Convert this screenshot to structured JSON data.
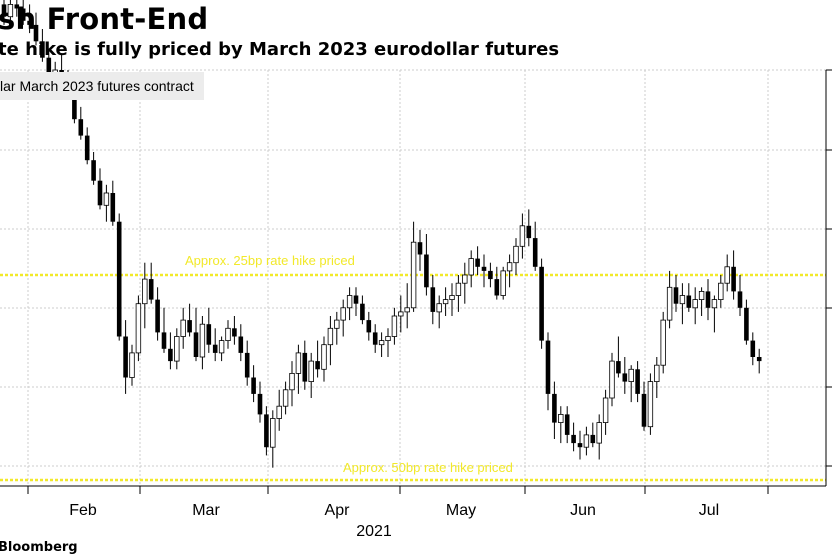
{
  "header": {
    "title": "sh Front-End",
    "subtitle": "te hike is fully priced by March 2023 eurodollar futures"
  },
  "legend": {
    "label": "lar March 2023 futures contract"
  },
  "footer": {
    "source": "Bloomberg"
  },
  "colors": {
    "candle": "#000000",
    "threshold_line": "#f2e92a",
    "grid": "#cccccc",
    "legend_bg": "#ececec"
  },
  "chart_data": {
    "type": "candlestick",
    "x_month_labels": [
      "Feb",
      "Mar",
      "Apr",
      "May",
      "Jun",
      "Jul"
    ],
    "x_year_label": "2021",
    "grid": true,
    "annotations": [
      {
        "text": "Approx. 25bp rate hike priced",
        "level": 0.5
      },
      {
        "text": "Approx. 50bp rate hike priced",
        "level": 0.0
      }
    ],
    "series": [
      {
        "values": [
          [
            1.16,
            1.18,
            1.11,
            1.13
          ],
          [
            1.13,
            1.18,
            1.11,
            1.16
          ],
          [
            1.16,
            1.19,
            1.13,
            1.15
          ],
          [
            1.15,
            1.18,
            1.11,
            1.12
          ],
          [
            1.12,
            1.16,
            1.09,
            1.11
          ],
          [
            1.11,
            1.14,
            1.06,
            1.07
          ],
          [
            1.07,
            1.1,
            1.02,
            1.03
          ],
          [
            1.03,
            1.05,
            0.98,
            0.99
          ],
          [
            0.99,
            1.02,
            0.95,
            1.0
          ],
          [
            1.0,
            1.04,
            0.96,
            0.97
          ],
          [
            0.97,
            1.0,
            0.94,
            0.95
          ],
          [
            0.95,
            0.97,
            0.87,
            0.88
          ],
          [
            0.88,
            0.91,
            0.83,
            0.84
          ],
          [
            0.84,
            0.86,
            0.77,
            0.78
          ],
          [
            0.78,
            0.8,
            0.72,
            0.73
          ],
          [
            0.73,
            0.76,
            0.66,
            0.67
          ],
          [
            0.67,
            0.72,
            0.63,
            0.7
          ],
          [
            0.7,
            0.73,
            0.62,
            0.63
          ],
          [
            0.63,
            0.65,
            0.34,
            0.35
          ],
          [
            0.35,
            0.39,
            0.21,
            0.25
          ],
          [
            0.25,
            0.33,
            0.23,
            0.31
          ],
          [
            0.31,
            0.45,
            0.29,
            0.43
          ],
          [
            0.43,
            0.53,
            0.37,
            0.49
          ],
          [
            0.49,
            0.53,
            0.43,
            0.44
          ],
          [
            0.44,
            0.47,
            0.34,
            0.36
          ],
          [
            0.36,
            0.42,
            0.31,
            0.32
          ],
          [
            0.32,
            0.36,
            0.27,
            0.29
          ],
          [
            0.29,
            0.37,
            0.27,
            0.35
          ],
          [
            0.35,
            0.42,
            0.32,
            0.39
          ],
          [
            0.39,
            0.43,
            0.35,
            0.36
          ],
          [
            0.36,
            0.42,
            0.29,
            0.3
          ],
          [
            0.3,
            0.4,
            0.27,
            0.38
          ],
          [
            0.38,
            0.42,
            0.31,
            0.33
          ],
          [
            0.33,
            0.37,
            0.29,
            0.31
          ],
          [
            0.31,
            0.35,
            0.29,
            0.34
          ],
          [
            0.34,
            0.39,
            0.32,
            0.37
          ],
          [
            0.37,
            0.4,
            0.33,
            0.35
          ],
          [
            0.35,
            0.38,
            0.29,
            0.31
          ],
          [
            0.31,
            0.34,
            0.23,
            0.25
          ],
          [
            0.25,
            0.28,
            0.19,
            0.21
          ],
          [
            0.21,
            0.24,
            0.14,
            0.16
          ],
          [
            0.16,
            0.18,
            0.06,
            0.08
          ],
          [
            0.08,
            0.17,
            0.03,
            0.15
          ],
          [
            0.15,
            0.22,
            0.12,
            0.18
          ],
          [
            0.18,
            0.24,
            0.16,
            0.22
          ],
          [
            0.22,
            0.29,
            0.18,
            0.26
          ],
          [
            0.26,
            0.33,
            0.21,
            0.31
          ],
          [
            0.31,
            0.34,
            0.22,
            0.24
          ],
          [
            0.24,
            0.31,
            0.2,
            0.29
          ],
          [
            0.29,
            0.34,
            0.25,
            0.27
          ],
          [
            0.27,
            0.35,
            0.24,
            0.33
          ],
          [
            0.33,
            0.4,
            0.28,
            0.37
          ],
          [
            0.37,
            0.41,
            0.33,
            0.39
          ],
          [
            0.39,
            0.44,
            0.35,
            0.42
          ],
          [
            0.42,
            0.47,
            0.39,
            0.45
          ],
          [
            0.45,
            0.47,
            0.4,
            0.43
          ],
          [
            0.43,
            0.45,
            0.38,
            0.39
          ],
          [
            0.39,
            0.41,
            0.34,
            0.36
          ],
          [
            0.36,
            0.38,
            0.31,
            0.33
          ],
          [
            0.33,
            0.36,
            0.3,
            0.34
          ],
          [
            0.34,
            0.37,
            0.3,
            0.35
          ],
          [
            0.35,
            0.42,
            0.33,
            0.4
          ],
          [
            0.4,
            0.45,
            0.36,
            0.41
          ],
          [
            0.41,
            0.48,
            0.37,
            0.42
          ],
          [
            0.42,
            0.63,
            0.41,
            0.58
          ],
          [
            0.58,
            0.61,
            0.51,
            0.55
          ],
          [
            0.55,
            0.6,
            0.45,
            0.47
          ],
          [
            0.47,
            0.5,
            0.38,
            0.41
          ],
          [
            0.41,
            0.45,
            0.37,
            0.43
          ],
          [
            0.43,
            0.47,
            0.4,
            0.44
          ],
          [
            0.44,
            0.48,
            0.4,
            0.45
          ],
          [
            0.45,
            0.5,
            0.41,
            0.48
          ],
          [
            0.48,
            0.53,
            0.43,
            0.5
          ],
          [
            0.5,
            0.56,
            0.47,
            0.54
          ],
          [
            0.54,
            0.57,
            0.5,
            0.52
          ],
          [
            0.52,
            0.55,
            0.47,
            0.51
          ],
          [
            0.51,
            0.53,
            0.47,
            0.49
          ],
          [
            0.49,
            0.52,
            0.44,
            0.45
          ],
          [
            0.45,
            0.52,
            0.44,
            0.51
          ],
          [
            0.51,
            0.55,
            0.47,
            0.53
          ],
          [
            0.53,
            0.59,
            0.5,
            0.57
          ],
          [
            0.57,
            0.65,
            0.54,
            0.62
          ],
          [
            0.62,
            0.66,
            0.57,
            0.59
          ],
          [
            0.59,
            0.63,
            0.51,
            0.52
          ],
          [
            0.52,
            0.54,
            0.32,
            0.34
          ],
          [
            0.34,
            0.36,
            0.17,
            0.21
          ],
          [
            0.21,
            0.24,
            0.1,
            0.14
          ],
          [
            0.14,
            0.18,
            0.09,
            0.16
          ],
          [
            0.16,
            0.18,
            0.09,
            0.11
          ],
          [
            0.11,
            0.14,
            0.07,
            0.09
          ],
          [
            0.09,
            0.12,
            0.05,
            0.08
          ],
          [
            0.08,
            0.13,
            0.06,
            0.11
          ],
          [
            0.11,
            0.14,
            0.08,
            0.09
          ],
          [
            0.09,
            0.16,
            0.05,
            0.14
          ],
          [
            0.14,
            0.22,
            0.11,
            0.2
          ],
          [
            0.2,
            0.31,
            0.18,
            0.29
          ],
          [
            0.29,
            0.35,
            0.25,
            0.26
          ],
          [
            0.26,
            0.3,
            0.21,
            0.24
          ],
          [
            0.24,
            0.28,
            0.19,
            0.27
          ],
          [
            0.27,
            0.29,
            0.19,
            0.21
          ],
          [
            0.21,
            0.24,
            0.12,
            0.13
          ],
          [
            0.13,
            0.26,
            0.11,
            0.24
          ],
          [
            0.24,
            0.3,
            0.2,
            0.28
          ],
          [
            0.28,
            0.41,
            0.26,
            0.39
          ],
          [
            0.39,
            0.51,
            0.37,
            0.47
          ],
          [
            0.47,
            0.5,
            0.41,
            0.43
          ],
          [
            0.43,
            0.48,
            0.38,
            0.45
          ],
          [
            0.45,
            0.48,
            0.41,
            0.42
          ],
          [
            0.42,
            0.47,
            0.38,
            0.44
          ],
          [
            0.44,
            0.47,
            0.4,
            0.46
          ],
          [
            0.46,
            0.49,
            0.39,
            0.42
          ],
          [
            0.42,
            0.45,
            0.36,
            0.44
          ],
          [
            0.44,
            0.5,
            0.42,
            0.48
          ],
          [
            0.48,
            0.55,
            0.46,
            0.52
          ],
          [
            0.52,
            0.56,
            0.44,
            0.46
          ],
          [
            0.46,
            0.5,
            0.4,
            0.42
          ],
          [
            0.42,
            0.44,
            0.33,
            0.34
          ],
          [
            0.34,
            0.36,
            0.28,
            0.3
          ],
          [
            0.3,
            0.32,
            0.26,
            0.29
          ]
        ]
      }
    ]
  }
}
